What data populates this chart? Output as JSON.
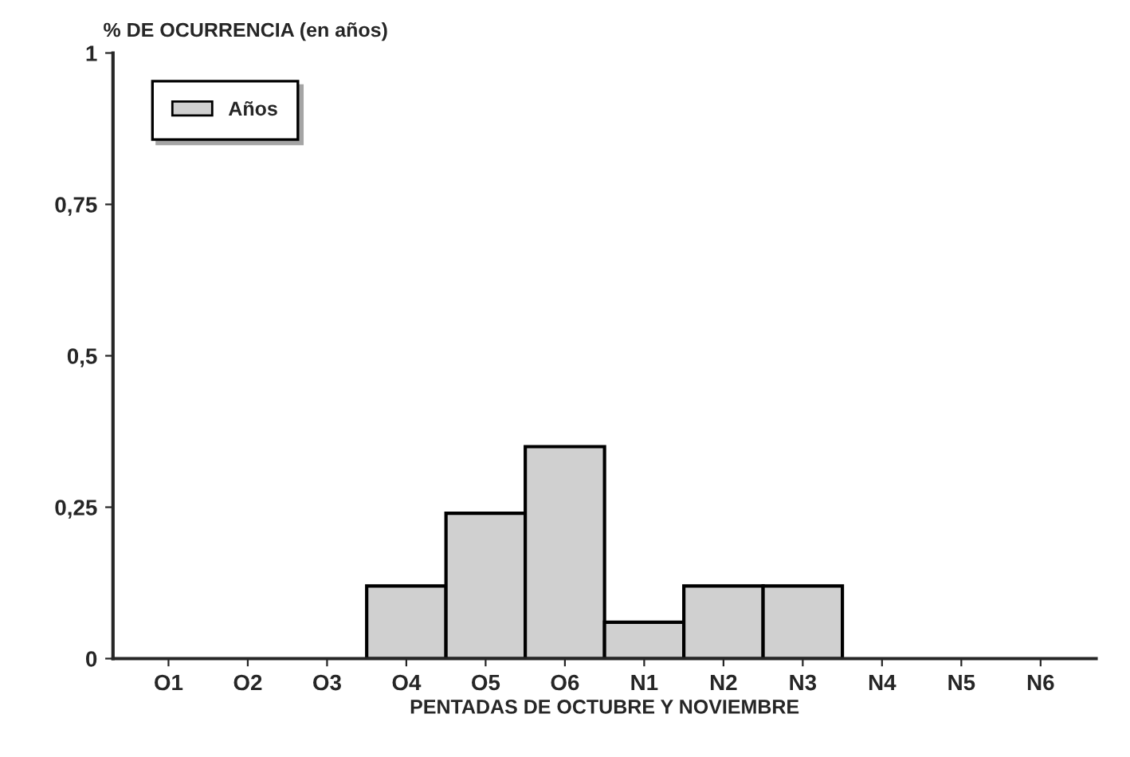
{
  "chart_data": {
    "type": "bar",
    "ylabel": "% DE OCURRENCIA (en años)",
    "xlabel": "PENTADAS DE OCTUBRE Y NOVIEMBRE",
    "categories": [
      "O1",
      "O2",
      "O3",
      "O4",
      "O5",
      "O6",
      "N1",
      "N2",
      "N3",
      "N4",
      "N5",
      "N6"
    ],
    "series": [
      {
        "name": "Años",
        "color": "#d0d0d0",
        "values": [
          0,
          0,
          0,
          0.12,
          0.24,
          0.35,
          0.06,
          0.12,
          0.12,
          0,
          0,
          0
        ]
      }
    ],
    "ylim": [
      0,
      1
    ],
    "yticks": [
      0,
      {
        "value": 0.25,
        "label": "0,25"
      },
      {
        "value": 0.5,
        "label": "0,5"
      },
      {
        "value": 0.75,
        "label": "0,75"
      },
      1
    ],
    "legend": "top left",
    "grid": false
  }
}
